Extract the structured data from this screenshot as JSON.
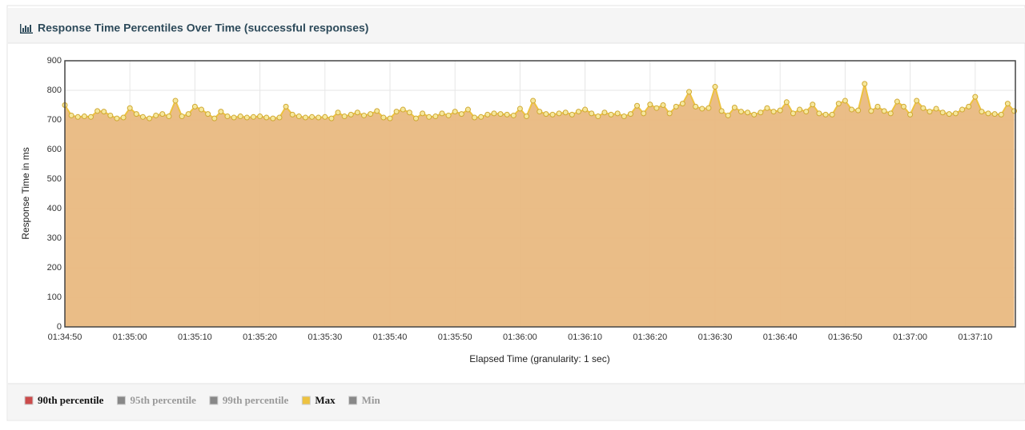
{
  "chart_data": {
    "type": "area",
    "title": "Response Time Percentiles Over Time (successful responses)",
    "y_label": "Response Time in ms",
    "x_label": "Elapsed Time (granularity: 1 sec)",
    "categories": [
      "01:34:50",
      null,
      null,
      null,
      null,
      null,
      null,
      null,
      null,
      null,
      "01:35:00",
      null,
      null,
      null,
      null,
      null,
      null,
      null,
      null,
      null,
      "01:35:10",
      null,
      null,
      null,
      null,
      null,
      null,
      null,
      null,
      null,
      "01:35:20",
      null,
      null,
      null,
      null,
      null,
      null,
      null,
      null,
      null,
      "01:35:30",
      null,
      null,
      null,
      null,
      null,
      null,
      null,
      null,
      null,
      "01:35:40",
      null,
      null,
      null,
      null,
      null,
      null,
      null,
      null,
      null,
      "01:35:50",
      null,
      null,
      null,
      null,
      null,
      null,
      null,
      null,
      null,
      "01:36:00",
      null,
      null,
      null,
      null,
      null,
      null,
      null,
      null,
      null,
      "01:36:10",
      null,
      null,
      null,
      null,
      null,
      null,
      null,
      null,
      null,
      "01:36:20",
      null,
      null,
      null,
      null,
      null,
      null,
      null,
      null,
      null,
      "01:36:30",
      null,
      null,
      null,
      null,
      null,
      null,
      null,
      null,
      null,
      "01:36:40",
      null,
      null,
      null,
      null,
      null,
      null,
      null,
      null,
      null,
      "01:36:50",
      null,
      null,
      null,
      null,
      null,
      null,
      null,
      null,
      null,
      "01:37:00",
      null,
      null,
      null,
      null,
      null,
      null,
      null,
      null,
      null,
      "01:37:10",
      null,
      null,
      null,
      null,
      null,
      null
    ],
    "series": [
      {
        "name": "90th percentile",
        "color": "#cb4b4b",
        "active": true
      },
      {
        "name": "95th percentile",
        "color": "#888888",
        "active": false
      },
      {
        "name": "99th percentile",
        "color": "#888888",
        "active": false
      },
      {
        "name": "Max",
        "color": "#edc240",
        "active": true,
        "values": [
          750,
          715,
          710,
          712,
          710,
          730,
          728,
          715,
          705,
          708,
          740,
          720,
          710,
          705,
          715,
          720,
          712,
          765,
          712,
          720,
          745,
          735,
          720,
          705,
          728,
          712,
          708,
          712,
          708,
          710,
          712,
          708,
          705,
          708,
          745,
          718,
          712,
          708,
          710,
          708,
          710,
          705,
          725,
          712,
          718,
          725,
          715,
          720,
          730,
          708,
          705,
          728,
          735,
          725,
          705,
          722,
          710,
          712,
          722,
          715,
          728,
          720,
          735,
          708,
          710,
          718,
          722,
          720,
          718,
          715,
          738,
          712,
          765,
          728,
          720,
          718,
          722,
          725,
          718,
          728,
          735,
          722,
          712,
          725,
          718,
          722,
          712,
          720,
          748,
          722,
          752,
          740,
          750,
          722,
          745,
          755,
          795,
          745,
          738,
          740,
          812,
          730,
          715,
          742,
          728,
          725,
          718,
          725,
          740,
          728,
          732,
          760,
          722,
          735,
          728,
          752,
          722,
          718,
          718,
          755,
          765,
          735,
          732,
          822,
          730,
          745,
          730,
          722,
          762,
          745,
          718,
          765,
          740,
          728,
          738,
          725,
          720,
          722,
          735,
          745,
          778,
          728,
          722,
          720,
          718,
          755,
          730
        ]
      },
      {
        "name": "Min",
        "color": "#888888",
        "active": false
      }
    ],
    "ylim": [
      0,
      900
    ],
    "yticks": [
      0,
      100,
      200,
      300,
      400,
      500,
      600,
      700,
      800,
      900
    ],
    "grid": true
  }
}
